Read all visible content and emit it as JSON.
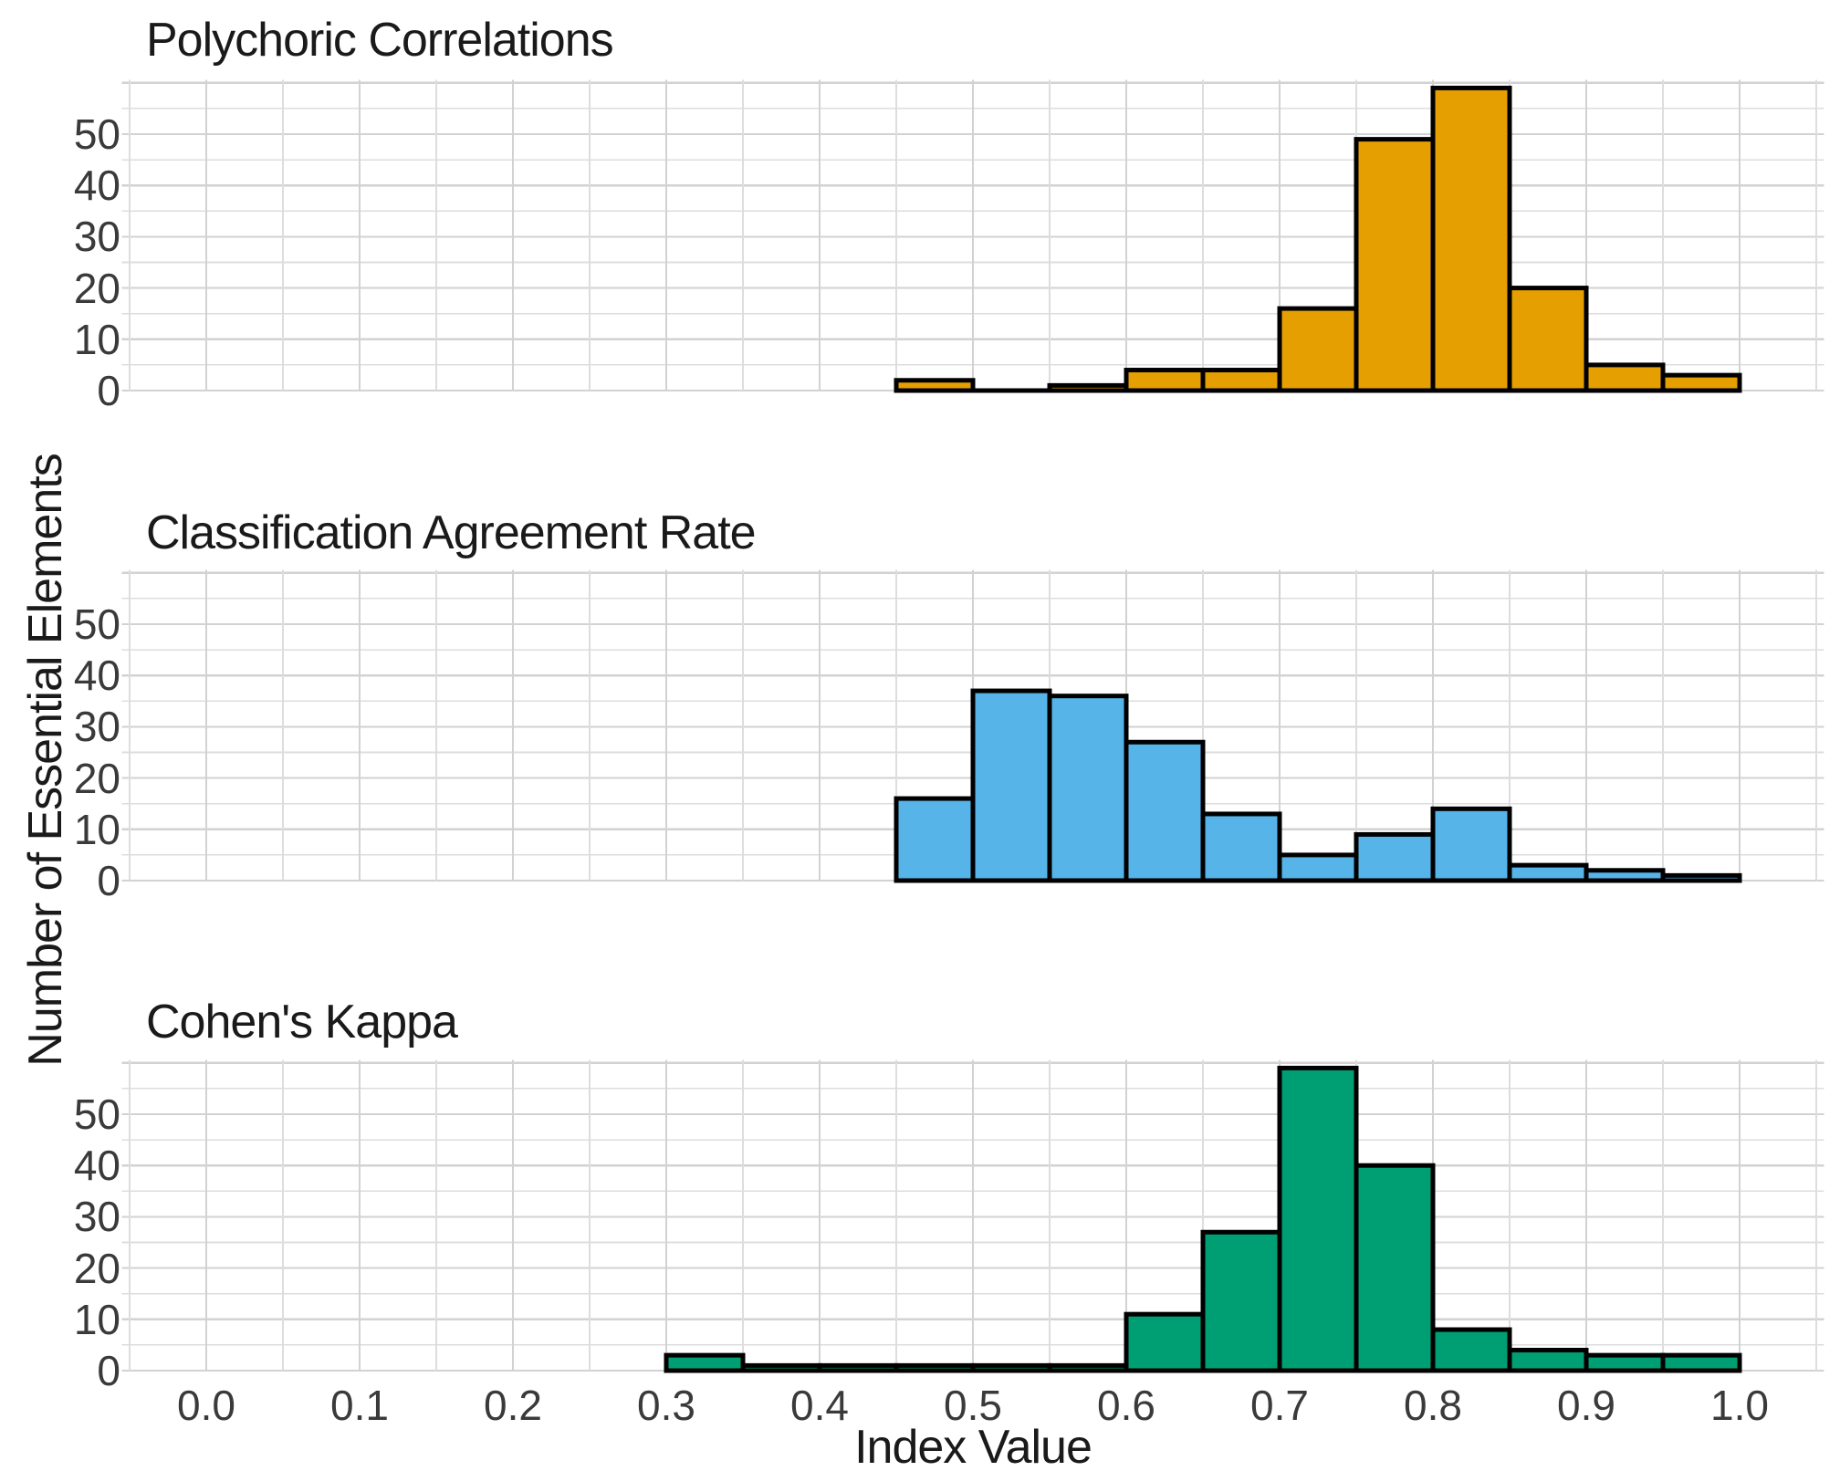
{
  "chart_data": {
    "type": "histogram",
    "layout": "three vertically stacked panels sharing one x axis",
    "xlabel": "Index Value",
    "ylabel": "Number of Essential Elements",
    "bin_width": 0.05,
    "xlim": [
      -0.055,
      1.055
    ],
    "ylim": [
      0,
      60.6
    ],
    "x_ticks": [
      0.0,
      0.1,
      0.2,
      0.3,
      0.4,
      0.5,
      0.6,
      0.7,
      0.8,
      0.9,
      1.0
    ],
    "x_tick_labels": [
      "0.0",
      "0.1",
      "0.2",
      "0.3",
      "0.4",
      "0.5",
      "0.6",
      "0.7",
      "0.8",
      "0.9",
      "1.0"
    ],
    "y_ticks": [
      0,
      10,
      20,
      30,
      40,
      50
    ],
    "y_tick_labels": [
      "0",
      "10",
      "20",
      "30",
      "40",
      "50"
    ],
    "minor_x_step": 0.05,
    "minor_y_step": 5,
    "grid": true,
    "legend": false,
    "bar_outline_color": "#000000",
    "panels": [
      {
        "title": "Polychoric Correlations",
        "color": "#E69F00",
        "bins": [
          {
            "x0": 0.45,
            "count": 2
          },
          {
            "x0": 0.5,
            "count": 0
          },
          {
            "x0": 0.55,
            "count": 1
          },
          {
            "x0": 0.6,
            "count": 4
          },
          {
            "x0": 0.65,
            "count": 4
          },
          {
            "x0": 0.7,
            "count": 16
          },
          {
            "x0": 0.75,
            "count": 49
          },
          {
            "x0": 0.8,
            "count": 59
          },
          {
            "x0": 0.85,
            "count": 20
          },
          {
            "x0": 0.9,
            "count": 5
          },
          {
            "x0": 0.95,
            "count": 3
          }
        ]
      },
      {
        "title": "Classification Agreement Rate",
        "color": "#56B4E9",
        "bins": [
          {
            "x0": 0.45,
            "count": 16
          },
          {
            "x0": 0.5,
            "count": 37
          },
          {
            "x0": 0.55,
            "count": 36
          },
          {
            "x0": 0.6,
            "count": 27
          },
          {
            "x0": 0.65,
            "count": 13
          },
          {
            "x0": 0.7,
            "count": 5
          },
          {
            "x0": 0.75,
            "count": 9
          },
          {
            "x0": 0.8,
            "count": 14
          },
          {
            "x0": 0.85,
            "count": 3
          },
          {
            "x0": 0.9,
            "count": 2
          },
          {
            "x0": 0.95,
            "count": 1
          }
        ]
      },
      {
        "title": "Cohen's Kappa",
        "color": "#009E73",
        "bins": [
          {
            "x0": 0.3,
            "count": 3
          },
          {
            "x0": 0.35,
            "count": 1
          },
          {
            "x0": 0.4,
            "count": 1
          },
          {
            "x0": 0.45,
            "count": 1
          },
          {
            "x0": 0.5,
            "count": 1
          },
          {
            "x0": 0.55,
            "count": 1
          },
          {
            "x0": 0.6,
            "count": 11
          },
          {
            "x0": 0.65,
            "count": 27
          },
          {
            "x0": 0.7,
            "count": 59
          },
          {
            "x0": 0.75,
            "count": 40
          },
          {
            "x0": 0.8,
            "count": 8
          },
          {
            "x0": 0.85,
            "count": 4
          },
          {
            "x0": 0.9,
            "count": 3
          },
          {
            "x0": 0.95,
            "count": 3
          }
        ]
      }
    ],
    "style": {
      "grid_major_color": "#d2d2d2",
      "grid_minor_color": "#ddddde",
      "title_color": "#1a1a1a",
      "tick_color": "#3a3a3a",
      "background": "#ffffff"
    }
  }
}
